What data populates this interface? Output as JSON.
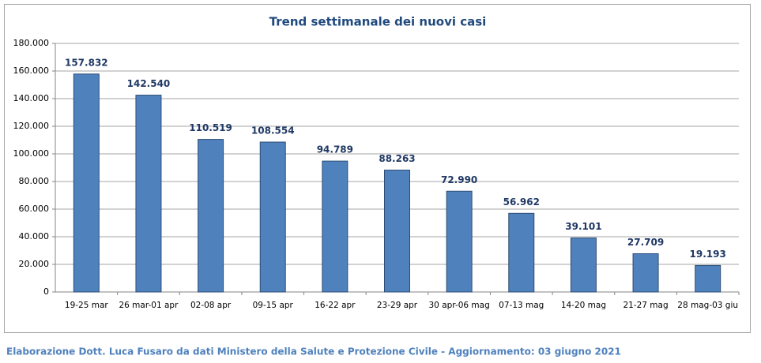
{
  "chart_data": {
    "type": "bar",
    "title": "Trend settimanale dei nuovi casi",
    "categories": [
      "19-25 mar",
      "26 mar-01 apr",
      "02-08 apr",
      "09-15 apr",
      "16-22 apr",
      "23-29 apr",
      "30 apr-06 mag",
      "07-13 mag",
      "14-20 mag",
      "21-27 mag",
      "28 mag-03 giu"
    ],
    "values": [
      157832,
      142540,
      110519,
      108554,
      94789,
      88263,
      72990,
      56962,
      39101,
      27709,
      19193
    ],
    "value_labels": [
      "157.832",
      "142.540",
      "110.519",
      "108.554",
      "94.789",
      "88.263",
      "72.990",
      "56.962",
      "39.101",
      "27.709",
      "19.193"
    ],
    "color": "#4f81bd",
    "ylim": [
      0,
      180000
    ],
    "yticks": [
      0,
      {
        "value": 20000,
        "label": "20.000"
      },
      {
        "value": 40000,
        "label": "40.000"
      },
      {
        "value": 60000,
        "label": "60.000"
      },
      {
        "value": 80000,
        "label": "80.000"
      },
      {
        "value": 100000,
        "label": "100.000"
      },
      {
        "value": 120000,
        "label": "120.000"
      },
      {
        "value": 140000,
        "label": "140.000"
      },
      {
        "value": 160000,
        "label": "160.000"
      },
      {
        "value": 180000,
        "label": "180.000"
      }
    ],
    "grid": true,
    "source": "Elaborazione Dott. Luca Fusaro da dati Ministero della Salute e Protezione Civile - Aggiornamento: 03 giugno 2021"
  }
}
